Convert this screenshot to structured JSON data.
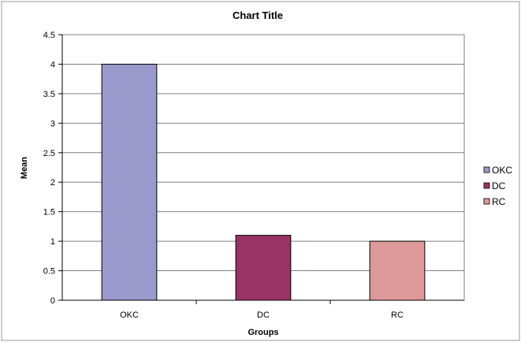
{
  "chart_data": {
    "type": "bar",
    "title": "Chart Title",
    "xlabel": "Groups",
    "ylabel": "Mean",
    "categories": [
      "OKC",
      "DC",
      "RC"
    ],
    "values": [
      4,
      1.1,
      1
    ],
    "colors": [
      "#9999cc",
      "#993366",
      "#dd9999"
    ],
    "ylim": [
      0,
      4.5
    ],
    "yticks": [
      "0",
      "0.5",
      "1",
      "1.5",
      "2",
      "2.5",
      "3",
      "3.5",
      "4",
      "4.5"
    ],
    "grid": true,
    "legend": {
      "position": "right",
      "entries": [
        "OKC",
        "DC",
        "RC"
      ]
    }
  }
}
